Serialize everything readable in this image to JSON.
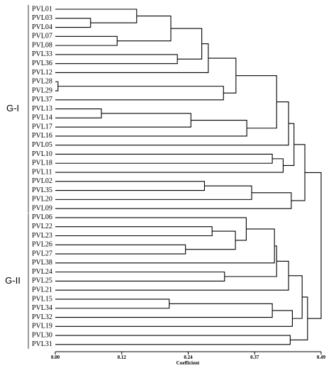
{
  "chart_data": {
    "type": "dendrogram",
    "x_label": "Coefficient",
    "xlim": [
      0,
      0.49
    ],
    "xticks": [
      {
        "value": 0,
        "label": "0.00"
      },
      {
        "value": 0.1225,
        "label": "0.12"
      },
      {
        "value": 0.245,
        "label": "0.24"
      },
      {
        "value": 0.3675,
        "label": "0.37"
      },
      {
        "value": 0.49,
        "label": "0.49"
      }
    ],
    "groups": [
      {
        "label": "G-I"
      },
      {
        "label": "G-II"
      }
    ],
    "tree": {
      "height": 0.49,
      "children": [
        {
          "height": 0.46,
          "children": [
            {
              "height": 0.44,
              "children": [
                {
                  "height": 0.43,
                  "children": [
                    {
                      "height": 0.408,
                      "children": [
                        {
                          "height": 0.333,
                          "children": [
                            {
                              "height": 0.282,
                              "children": [
                                {
                                  "height": 0.27,
                                  "children": [
                                    {
                                      "height": 0.213,
                                      "children": [
                                        {
                                          "height": 0.15,
                                          "children": [
                                            "PVL01",
                                            {
                                              "height": 0.065,
                                              "children": [
                                                "PVL03",
                                                "PVL04"
                                              ]
                                            }
                                          ]
                                        },
                                        {
                                          "height": 0.114,
                                          "children": [
                                            "PVL07",
                                            "PVL08"
                                          ]
                                        }
                                      ]
                                    },
                                    {
                                      "height": 0.225,
                                      "children": [
                                        "PVL33",
                                        "PVL36"
                                      ]
                                    }
                                  ]
                                },
                                "PVL12"
                              ]
                            },
                            {
                              "height": 0.31,
                              "children": [
                                {
                                  "height": 0.005,
                                  "children": [
                                    "PVL28",
                                    "PVL29"
                                  ]
                                },
                                "PVL37"
                              ]
                            }
                          ]
                        },
                        {
                          "height": 0.353,
                          "children": [
                            {
                              "height": 0.25,
                              "children": [
                                {
                                  "height": 0.085,
                                  "children": [
                                    "PVL13",
                                    "PVL14"
                                  ]
                                },
                                "PVL17"
                              ]
                            },
                            "PVL16"
                          ]
                        }
                      ]
                    },
                    "PVL05"
                  ]
                },
                {
                  "height": 0.42,
                  "children": [
                    {
                      "height": 0.4,
                      "children": [
                        "PVL10",
                        "PVL18"
                      ]
                    },
                    "PVL11"
                  ]
                }
              ]
            },
            {
              "height": 0.435,
              "children": [
                {
                  "height": 0.362,
                  "children": [
                    {
                      "height": 0.275,
                      "children": [
                        "PVL02",
                        "PVL35"
                      ]
                    },
                    "PVL20"
                  ]
                },
                "PVL09"
              ]
            }
          ]
        },
        {
          "height": 0.465,
          "children": [
            {
              "height": 0.455,
              "children": [
                {
                  "height": 0.43,
                  "children": [
                    {
                      "height": 0.408,
                      "children": [
                        {
                          "height": 0.404,
                          "children": [
                            {
                              "height": 0.352,
                              "children": [
                                "PVL06",
                                {
                                  "height": 0.332,
                                  "children": [
                                    {
                                      "height": 0.289,
                                      "children": [
                                        "PVL22",
                                        "PVL23"
                                      ]
                                    },
                                    {
                                      "height": 0.24,
                                      "children": [
                                        "PVL26",
                                        "PVL27"
                                      ]
                                    }
                                  ]
                                }
                              ]
                            },
                            "PVL38"
                          ]
                        },
                        {
                          "height": 0.312,
                          "children": [
                            "PVL24",
                            "PVL25"
                          ]
                        }
                      ]
                    },
                    "PVL21"
                  ]
                },
                {
                  "height": 0.437,
                  "children": [
                    {
                      "height": 0.4,
                      "children": [
                        {
                          "height": 0.21,
                          "children": [
                            "PVL15",
                            "PVL34"
                          ]
                        },
                        "PVL32"
                      ]
                    },
                    "PVL19"
                  ]
                }
              ]
            },
            {
              "height": 0.433,
              "children": [
                "PVL30",
                "PVL31"
              ]
            }
          ]
        }
      ]
    }
  }
}
